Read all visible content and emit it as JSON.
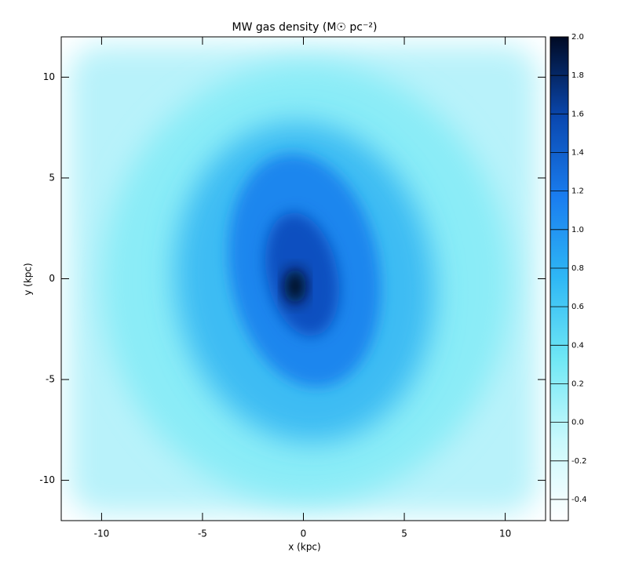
{
  "chart_data": {
    "type": "image",
    "title": "MW gas density (M☉ pc⁻²)",
    "xlabel": "x (kpc)",
    "ylabel": "y (kpc)",
    "xlim": [
      -12,
      12
    ],
    "ylim": [
      -12,
      12
    ],
    "xticks": [
      -10,
      -5,
      0,
      5,
      10
    ],
    "yticks": [
      -10,
      -5,
      0,
      5,
      10
    ],
    "clim": [
      -0.51,
      2.0
    ],
    "cticks": [
      {
        "value": 2.0,
        "label": "2.0"
      },
      1.8,
      1.6,
      1.4,
      1.2,
      {
        "value": 1.0,
        "label": "1.0"
      },
      0.8,
      0.6,
      0.4,
      0.2,
      {
        "value": 0.0,
        "label": "0.0"
      },
      -0.2,
      -0.4
    ],
    "colormap": [
      "#ffffff",
      "#c8f8fc",
      "#70e8f5",
      "#2fb8f5",
      "#1a7ef0",
      "#0a48b0",
      "#000a24"
    ]
  }
}
